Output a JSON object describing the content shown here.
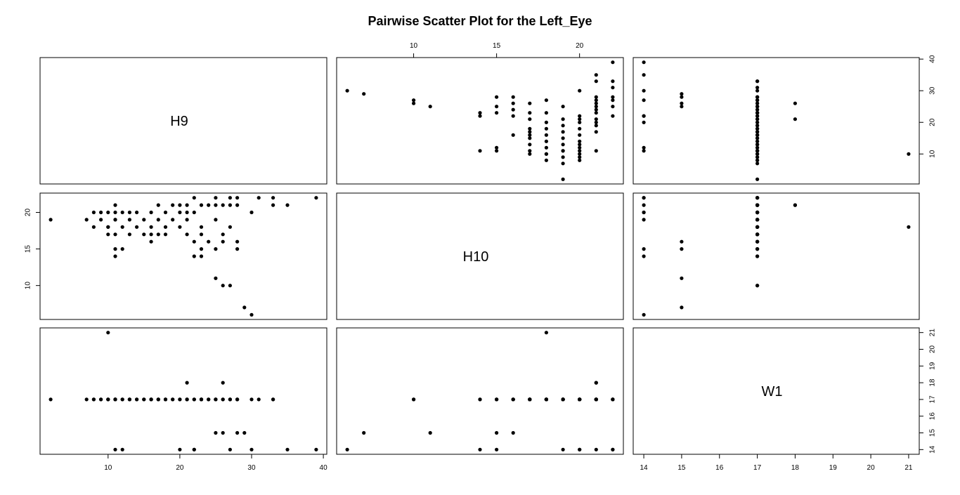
{
  "chart_data": {
    "type": "scatter",
    "title": "Pairwise Scatter Plot for the Left_Eye",
    "variables": [
      "H9",
      "H10",
      "W1"
    ],
    "ranges": {
      "H9": [
        2,
        39
      ],
      "H10": [
        6,
        22
      ],
      "W1": [
        14,
        21
      ]
    },
    "ticks": {
      "H9": [
        10,
        20,
        30,
        40
      ],
      "H10": [
        10,
        15,
        20
      ],
      "W1": [
        14,
        15,
        16,
        17,
        18,
        19,
        20,
        21
      ]
    },
    "grid": false,
    "legend": "none",
    "point_color": "#000000",
    "observations": [
      [
        30,
        6,
        14
      ],
      [
        29,
        7,
        15
      ],
      [
        27,
        10,
        17
      ],
      [
        26,
        10,
        17
      ],
      [
        25,
        11,
        15
      ],
      [
        23,
        14,
        17
      ],
      [
        22,
        14,
        14
      ],
      [
        11,
        14,
        17
      ],
      [
        23,
        15,
        17
      ],
      [
        25,
        15,
        17
      ],
      [
        28,
        15,
        15
      ],
      [
        11,
        15,
        17
      ],
      [
        12,
        15,
        14
      ],
      [
        16,
        16,
        17
      ],
      [
        22,
        16,
        17
      ],
      [
        24,
        16,
        17
      ],
      [
        26,
        16,
        15
      ],
      [
        28,
        16,
        17
      ],
      [
        10,
        17,
        17
      ],
      [
        11,
        17,
        17
      ],
      [
        13,
        17,
        17
      ],
      [
        15,
        17,
        17
      ],
      [
        16,
        17,
        17
      ],
      [
        17,
        17,
        17
      ],
      [
        18,
        17,
        17
      ],
      [
        21,
        17,
        17
      ],
      [
        23,
        17,
        17
      ],
      [
        26,
        17,
        17
      ],
      [
        8,
        18,
        17
      ],
      [
        10,
        18,
        17
      ],
      [
        12,
        18,
        17
      ],
      [
        14,
        18,
        17
      ],
      [
        16,
        18,
        17
      ],
      [
        18,
        18,
        17
      ],
      [
        20,
        18,
        17
      ],
      [
        23,
        18,
        17
      ],
      [
        27,
        18,
        17
      ],
      [
        7,
        19,
        17
      ],
      [
        9,
        19,
        17
      ],
      [
        11,
        19,
        17
      ],
      [
        13,
        19,
        17
      ],
      [
        15,
        19,
        17
      ],
      [
        17,
        19,
        17
      ],
      [
        19,
        19,
        17
      ],
      [
        21,
        19,
        17
      ],
      [
        25,
        19,
        17
      ],
      [
        2,
        19,
        17
      ],
      [
        8,
        20,
        17
      ],
      [
        9,
        20,
        17
      ],
      [
        10,
        20,
        17
      ],
      [
        11,
        20,
        17
      ],
      [
        12,
        20,
        17
      ],
      [
        13,
        20,
        17
      ],
      [
        14,
        20,
        17
      ],
      [
        16,
        20,
        17
      ],
      [
        18,
        20,
        17
      ],
      [
        20,
        20,
        14
      ],
      [
        21,
        20,
        17
      ],
      [
        22,
        20,
        14
      ],
      [
        30,
        20,
        17
      ],
      [
        11,
        21,
        17
      ],
      [
        17,
        21,
        17
      ],
      [
        19,
        21,
        17
      ],
      [
        20,
        21,
        17
      ],
      [
        21,
        21,
        18
      ],
      [
        23,
        21,
        17
      ],
      [
        24,
        21,
        17
      ],
      [
        25,
        21,
        17
      ],
      [
        26,
        21,
        18
      ],
      [
        27,
        21,
        17
      ],
      [
        28,
        21,
        17
      ],
      [
        33,
        21,
        17
      ],
      [
        35,
        21,
        14
      ],
      [
        22,
        22,
        17
      ],
      [
        25,
        22,
        17
      ],
      [
        27,
        22,
        14
      ],
      [
        28,
        22,
        17
      ],
      [
        31,
        22,
        17
      ],
      [
        33,
        22,
        17
      ],
      [
        39,
        22,
        14
      ],
      [
        10,
        18,
        21
      ],
      [
        11,
        19,
        14
      ]
    ]
  }
}
